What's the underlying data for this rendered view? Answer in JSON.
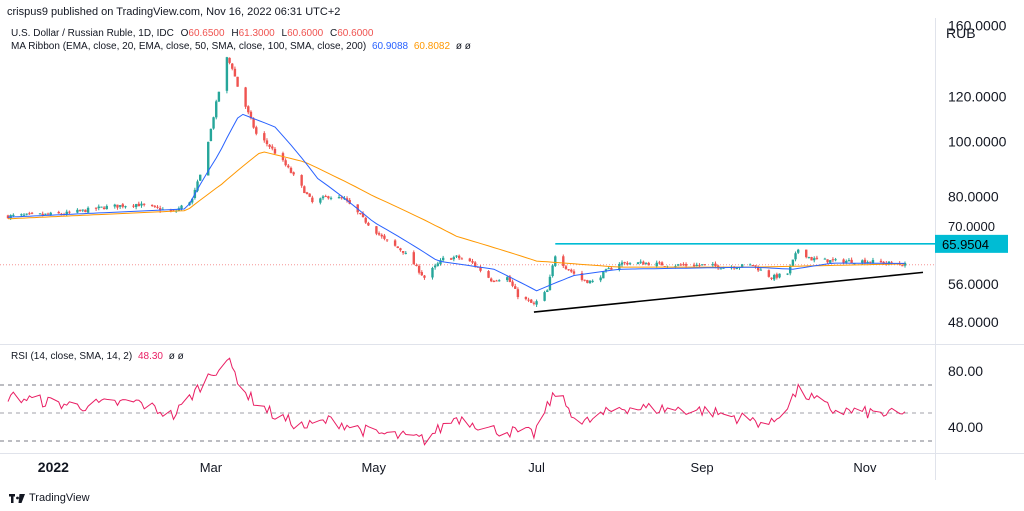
{
  "header": {
    "published": "crispus9 published on TradingView.com, Nov 16, 2022 06:31 UTC+2"
  },
  "legend": {
    "symbol_line": {
      "name": "U.S. Dollar / Russian Ruble, 1D, IDC",
      "o_label": "O",
      "o_value": "60.6500",
      "h_label": "H",
      "h_value": "61.3000",
      "l_label": "L",
      "l_value": "60.6000",
      "c_label": "C",
      "c_value": "60.6000"
    },
    "ma_line": {
      "name": "MA Ribbon (EMA, close, 20, EMA, close, 50, SMA, close, 100, SMA, close, 200)",
      "v1": "60.9088",
      "v2": "60.8082",
      "rest": "ø ø"
    },
    "rsi_line": {
      "name": "RSI (14, close, SMA, 14, 2)",
      "value": "48.30",
      "rest": "ø ø"
    }
  },
  "currency": "RUB",
  "price_axis": {
    "labels": [
      "160.0000",
      "120.0000",
      "100.0000",
      "80.0000",
      "56.0000",
      "48.0000"
    ],
    "hidden_label": "70.0000",
    "resistance_label": "65.9504"
  },
  "rsi_axis": {
    "labels": [
      "80.00",
      "40.00"
    ]
  },
  "time_axis": {
    "labels": [
      "2022",
      "Mar",
      "May",
      "Jul",
      "Sep",
      "Nov"
    ]
  },
  "footer": {
    "brand": "TradingView"
  },
  "colors": {
    "up": "#26a69a",
    "down": "#ef5350",
    "ema20": "#2962ff",
    "ema50": "#ff9800",
    "rsi": "#e91e63",
    "resistance": "#00bcd4",
    "trendline": "#000000"
  },
  "chart_data": [
    {
      "type": "candlestick",
      "title": "U.S. Dollar / Russian Ruble, 1D, IDC",
      "y_scale": "log",
      "ylim": [
        45,
        165
      ],
      "x_range": [
        "2021-12-15",
        "2022-11-16"
      ],
      "price_anchors": [
        {
          "date": "2021-12-15",
          "close": 73.8
        },
        {
          "date": "2022-01-05",
          "close": 74.5
        },
        {
          "date": "2022-01-20",
          "close": 76.5
        },
        {
          "date": "2022-02-01",
          "close": 77.5
        },
        {
          "date": "2022-02-15",
          "close": 75.0
        },
        {
          "date": "2022-02-22",
          "close": 79.0
        },
        {
          "date": "2022-02-25",
          "close": 87.0
        },
        {
          "date": "2022-03-01",
          "close": 105.0
        },
        {
          "date": "2022-03-07",
          "close": 140.0
        },
        {
          "date": "2022-03-09",
          "close": 135.0
        },
        {
          "date": "2022-03-11",
          "close": 125.0
        },
        {
          "date": "2022-03-15",
          "close": 112.0
        },
        {
          "date": "2022-03-18",
          "close": 103.0
        },
        {
          "date": "2022-03-23",
          "close": 98.0
        },
        {
          "date": "2022-03-28",
          "close": 92.0
        },
        {
          "date": "2022-04-04",
          "close": 83.0
        },
        {
          "date": "2022-04-08",
          "close": 78.0
        },
        {
          "date": "2022-04-14",
          "close": 80.0
        },
        {
          "date": "2022-04-20",
          "close": 79.0
        },
        {
          "date": "2022-04-27",
          "close": 73.0
        },
        {
          "date": "2022-05-05",
          "close": 67.0
        },
        {
          "date": "2022-05-12",
          "close": 64.0
        },
        {
          "date": "2022-05-20",
          "close": 57.5
        },
        {
          "date": "2022-05-27",
          "close": 62.0
        },
        {
          "date": "2022-06-01",
          "close": 62.5
        },
        {
          "date": "2022-06-07",
          "close": 61.0
        },
        {
          "date": "2022-06-14",
          "close": 57.0
        },
        {
          "date": "2022-06-20",
          "close": 57.5
        },
        {
          "date": "2022-06-24",
          "close": 53.5
        },
        {
          "date": "2022-06-30",
          "close": 51.5
        },
        {
          "date": "2022-07-05",
          "close": 54.5
        },
        {
          "date": "2022-07-08",
          "close": 63.0
        },
        {
          "date": "2022-07-12",
          "close": 60.0
        },
        {
          "date": "2022-07-18",
          "close": 57.0
        },
        {
          "date": "2022-07-22",
          "close": 56.5
        },
        {
          "date": "2022-07-27",
          "close": 59.0
        },
        {
          "date": "2022-08-01",
          "close": 61.0
        },
        {
          "date": "2022-08-10",
          "close": 61.0
        },
        {
          "date": "2022-08-20",
          "close": 60.5
        },
        {
          "date": "2022-09-01",
          "close": 60.5
        },
        {
          "date": "2022-09-10",
          "close": 60.0
        },
        {
          "date": "2022-09-20",
          "close": 60.5
        },
        {
          "date": "2022-09-27",
          "close": 57.5
        },
        {
          "date": "2022-10-03",
          "close": 58.5
        },
        {
          "date": "2022-10-07",
          "close": 64.5
        },
        {
          "date": "2022-10-12",
          "close": 62.0
        },
        {
          "date": "2022-10-20",
          "close": 61.5
        },
        {
          "date": "2022-11-01",
          "close": 61.5
        },
        {
          "date": "2022-11-16",
          "close": 60.6
        }
      ],
      "ema20_anchors": [
        {
          "date": "2021-12-15",
          "value": 73.5
        },
        {
          "date": "2022-02-20",
          "value": 76.0
        },
        {
          "date": "2022-03-04",
          "value": 95.0
        },
        {
          "date": "2022-03-12",
          "value": 112.0
        },
        {
          "date": "2022-03-25",
          "value": 106.0
        },
        {
          "date": "2022-04-10",
          "value": 86.0
        },
        {
          "date": "2022-05-01",
          "value": 72.0
        },
        {
          "date": "2022-05-25",
          "value": 61.5
        },
        {
          "date": "2022-06-15",
          "value": 59.5
        },
        {
          "date": "2022-07-01",
          "value": 54.5
        },
        {
          "date": "2022-07-15",
          "value": 58.0
        },
        {
          "date": "2022-08-01",
          "value": 59.5
        },
        {
          "date": "2022-09-20",
          "value": 60.0
        },
        {
          "date": "2022-10-05",
          "value": 59.5
        },
        {
          "date": "2022-10-20",
          "value": 61.0
        },
        {
          "date": "2022-11-16",
          "value": 60.9088
        }
      ],
      "ema50_anchors": [
        {
          "date": "2021-12-15",
          "value": 73.0
        },
        {
          "date": "2022-02-20",
          "value": 75.5
        },
        {
          "date": "2022-03-05",
          "value": 84.0
        },
        {
          "date": "2022-03-20",
          "value": 96.0
        },
        {
          "date": "2022-04-05",
          "value": 92.0
        },
        {
          "date": "2022-05-01",
          "value": 80.0
        },
        {
          "date": "2022-06-01",
          "value": 68.0
        },
        {
          "date": "2022-07-01",
          "value": 61.5
        },
        {
          "date": "2022-08-01",
          "value": 60.0
        },
        {
          "date": "2022-09-20",
          "value": 60.0
        },
        {
          "date": "2022-11-16",
          "value": 60.8082
        }
      ],
      "resistance_level": 65.9504,
      "resistance_from": "2022-07-08",
      "trendline": [
        {
          "date": "2022-06-30",
          "value": 50.0
        },
        {
          "date": "2022-11-16",
          "value": 58.5
        }
      ]
    },
    {
      "type": "line",
      "title": "RSI (14, close, SMA, 14, 2)",
      "ylim": [
        25,
        95
      ],
      "guides": [
        30,
        50,
        70
      ],
      "rsi_anchors": [
        {
          "date": "2021-12-15",
          "value": 62
        },
        {
          "date": "2022-01-10",
          "value": 55
        },
        {
          "date": "2022-02-01",
          "value": 58
        },
        {
          "date": "2022-02-15",
          "value": 48
        },
        {
          "date": "2022-03-01",
          "value": 78
        },
        {
          "date": "2022-03-07",
          "value": 88
        },
        {
          "date": "2022-03-15",
          "value": 62
        },
        {
          "date": "2022-03-25",
          "value": 48
        },
        {
          "date": "2022-04-05",
          "value": 40
        },
        {
          "date": "2022-04-15",
          "value": 45
        },
        {
          "date": "2022-04-30",
          "value": 36
        },
        {
          "date": "2022-05-20",
          "value": 31
        },
        {
          "date": "2022-06-01",
          "value": 47
        },
        {
          "date": "2022-06-15",
          "value": 38
        },
        {
          "date": "2022-06-30",
          "value": 35
        },
        {
          "date": "2022-07-08",
          "value": 65
        },
        {
          "date": "2022-07-18",
          "value": 42
        },
        {
          "date": "2022-08-01",
          "value": 54
        },
        {
          "date": "2022-09-01",
          "value": 52
        },
        {
          "date": "2022-09-27",
          "value": 42
        },
        {
          "date": "2022-10-07",
          "value": 66
        },
        {
          "date": "2022-10-20",
          "value": 52
        },
        {
          "date": "2022-11-16",
          "value": 48.3
        }
      ]
    }
  ]
}
